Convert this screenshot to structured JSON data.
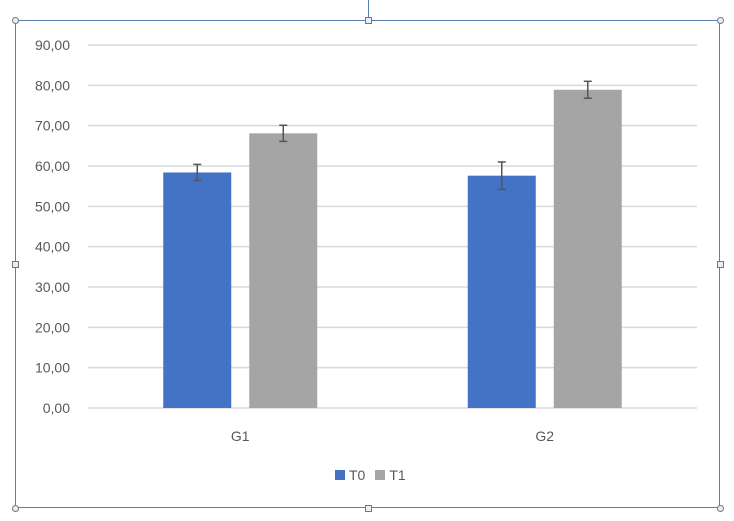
{
  "chart_data": {
    "type": "bar",
    "categories": [
      "G1",
      "G2"
    ],
    "series": [
      {
        "name": "T0",
        "values": [
          58.4,
          57.6
        ],
        "errors": [
          2.0,
          3.4
        ],
        "color": "#4472c4"
      },
      {
        "name": "T1",
        "values": [
          68.1,
          78.9
        ],
        "errors": [
          2.0,
          2.1
        ],
        "color": "#a5a5a5"
      }
    ],
    "yticks": [
      "0,00",
      "10,00",
      "20,00",
      "30,00",
      "40,00",
      "50,00",
      "60,00",
      "70,00",
      "80,00",
      "90,00"
    ],
    "ylim": [
      0,
      90
    ],
    "grid": true,
    "legend": "bottom"
  }
}
